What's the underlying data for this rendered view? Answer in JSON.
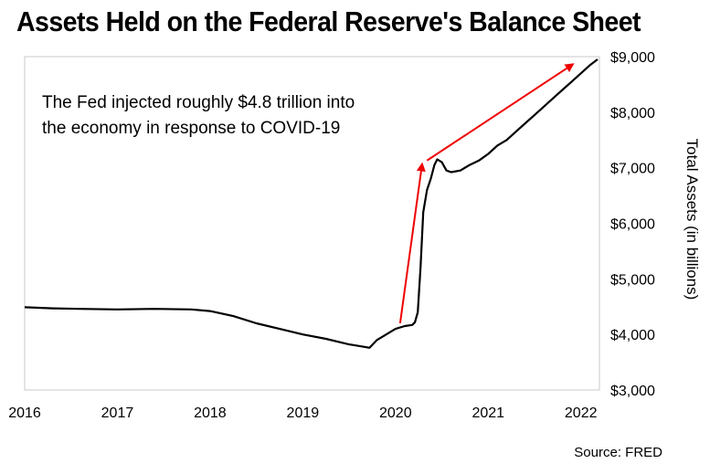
{
  "chart_data": {
    "type": "line",
    "title": "Assets Held on the Federal Reserve's Balance Sheet",
    "ylabel": "Total Assets (in billions)",
    "xlabel": "",
    "source": "Source: FRED",
    "annotation": [
      "The Fed injected roughly $4.8 trillion into",
      "the economy in response to COVID-19"
    ],
    "xlim": [
      2016.0,
      2022.2
    ],
    "ylim": [
      3000,
      9000
    ],
    "x_ticks": [
      2016,
      2017,
      2018,
      2019,
      2020,
      2021,
      2022
    ],
    "x_tick_labels": [
      "2016",
      "2017",
      "2018",
      "2019",
      "2020",
      "2021",
      "2022"
    ],
    "y_ticks": [
      3000,
      4000,
      5000,
      6000,
      7000,
      8000,
      9000
    ],
    "y_tick_labels": [
      "$3,000",
      "$4,000",
      "$5,000",
      "$6,000",
      "$7,000",
      "$8,000",
      "$9,000"
    ],
    "grid": false,
    "series": [
      {
        "name": "Total Assets",
        "color": "#000000",
        "x": [
          2016.0,
          2016.3,
          2016.6,
          2017.0,
          2017.4,
          2017.8,
          2018.0,
          2018.25,
          2018.5,
          2018.75,
          2019.0,
          2019.25,
          2019.5,
          2019.65,
          2019.72,
          2019.8,
          2019.9,
          2020.0,
          2020.1,
          2020.18,
          2020.21,
          2020.24,
          2020.27,
          2020.3,
          2020.34,
          2020.38,
          2020.42,
          2020.45,
          2020.5,
          2020.55,
          2020.6,
          2020.7,
          2020.8,
          2020.9,
          2021.0,
          2021.1,
          2021.2,
          2021.3,
          2021.4,
          2021.5,
          2021.6,
          2021.7,
          2021.8,
          2021.9,
          2022.0,
          2022.1,
          2022.18
        ],
        "values": [
          4490,
          4470,
          4460,
          4450,
          4460,
          4450,
          4420,
          4330,
          4200,
          4100,
          4000,
          3920,
          3820,
          3780,
          3760,
          3900,
          4000,
          4100,
          4150,
          4170,
          4220,
          4400,
          5200,
          6200,
          6600,
          6800,
          7050,
          7150,
          7100,
          6950,
          6920,
          6950,
          7050,
          7130,
          7250,
          7400,
          7500,
          7650,
          7800,
          7950,
          8100,
          8250,
          8400,
          8550,
          8700,
          8850,
          8950
        ]
      }
    ],
    "arrow_color": "#ee0000",
    "arrows": [
      {
        "from": [
          2020.05,
          4200
        ],
        "to": [
          2020.29,
          7100
        ]
      },
      {
        "from": [
          2020.34,
          7130
        ],
        "to": [
          2021.93,
          8880
        ]
      }
    ]
  }
}
